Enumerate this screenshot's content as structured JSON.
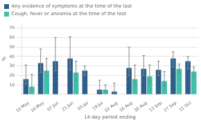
{
  "chart_data": {
    "type": "bar",
    "categories": [
      "10 May",
      "24 May",
      "07 Jun",
      "21 Jun",
      "05 Jul",
      "19 Jul",
      "02 Aug",
      "16 Aug",
      "30 Aug",
      "13 Sep",
      "27 Sep",
      "11 Oct"
    ],
    "series": [
      {
        "name": "Any evidence of symptoms at the time of the last",
        "color": "#2e5f8a",
        "values": [
          16,
          33,
          35,
          38,
          25,
          5,
          3,
          28,
          27,
          26,
          38,
          35
        ],
        "err_low": [
          5,
          10,
          10,
          12,
          5,
          2,
          1,
          8,
          7,
          6,
          9,
          8
        ],
        "err_high": [
          15,
          15,
          25,
          23,
          5,
          10,
          9,
          22,
          14,
          9,
          7,
          5
        ]
      },
      {
        "name": "Cough, fever or anosmia at the time of the test",
        "color": "#3dbfaa",
        "values": [
          8,
          25,
          null,
          23,
          null,
          5,
          null,
          16,
          19,
          14,
          27,
          24
        ],
        "err_low": [
          3,
          5,
          null,
          8,
          null,
          2,
          null,
          5,
          7,
          5,
          5,
          5
        ],
        "err_high": [
          13,
          13,
          null,
          12,
          null,
          5,
          null,
          15,
          12,
          10,
          5,
          5
        ]
      }
    ],
    "ylabel": "%",
    "xlabel": "14-day period ending",
    "ylim": [
      0,
      75
    ],
    "yticks": [
      10,
      20,
      30,
      40,
      50,
      60,
      70
    ],
    "grid": true,
    "legend": "upper left"
  }
}
